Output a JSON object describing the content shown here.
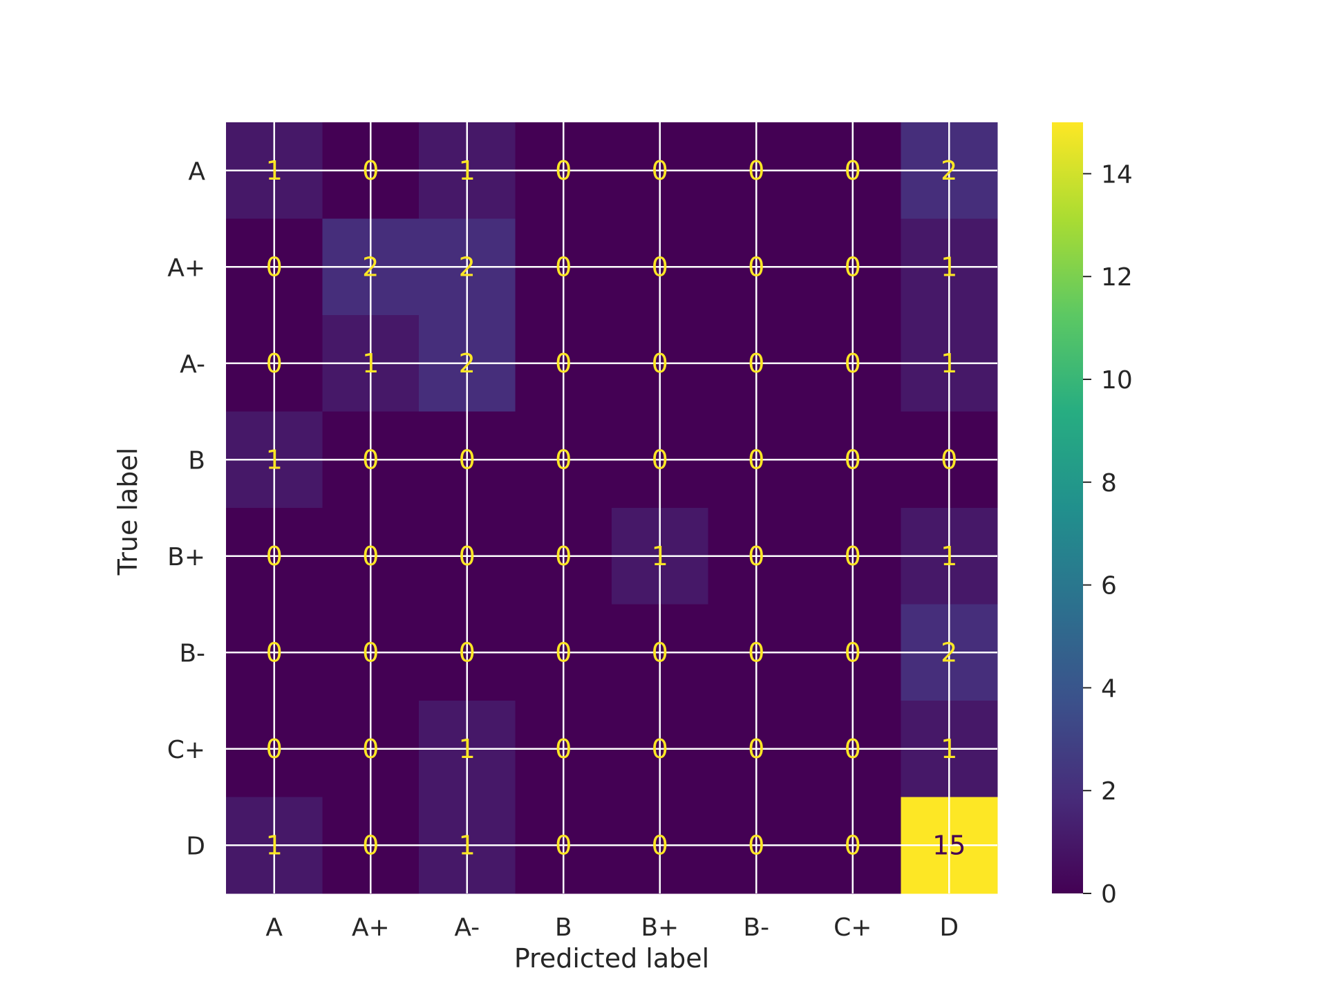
{
  "chart_data": {
    "type": "heatmap",
    "title": "",
    "xlabel": "Predicted label",
    "ylabel": "True label",
    "x_categories": [
      "A",
      "A+",
      "A-",
      "B",
      "B+",
      "B-",
      "C+",
      "D"
    ],
    "y_categories": [
      "A",
      "A+",
      "A-",
      "B",
      "B+",
      "B-",
      "C+",
      "D"
    ],
    "matrix": [
      [
        1,
        0,
        1,
        0,
        0,
        0,
        0,
        2
      ],
      [
        0,
        2,
        2,
        0,
        0,
        0,
        0,
        1
      ],
      [
        0,
        1,
        2,
        0,
        0,
        0,
        0,
        1
      ],
      [
        1,
        0,
        0,
        0,
        0,
        0,
        0,
        0
      ],
      [
        0,
        0,
        0,
        0,
        1,
        0,
        0,
        1
      ],
      [
        0,
        0,
        0,
        0,
        0,
        0,
        0,
        2
      ],
      [
        0,
        0,
        1,
        0,
        0,
        0,
        0,
        1
      ],
      [
        1,
        0,
        1,
        0,
        0,
        0,
        0,
        15
      ]
    ],
    "colormap": "viridis",
    "colorbar": {
      "min": 0,
      "max": 15,
      "ticks": [
        0,
        2,
        4,
        6,
        8,
        10,
        12,
        14
      ]
    },
    "grid": true,
    "colors": {
      "grid": "#ffffff",
      "text_on_dark": "#fde725",
      "text_on_light": "#440154",
      "tick_text": "#262626"
    }
  }
}
